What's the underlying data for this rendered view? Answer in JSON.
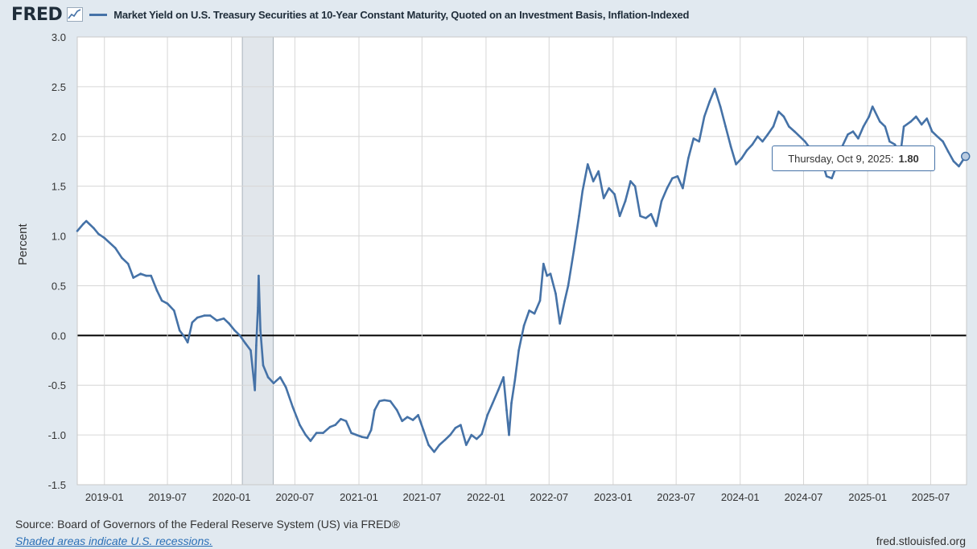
{
  "header": {
    "logo": "FRED",
    "logo_icon": "chart-line-icon",
    "series_title": "Market Yield on U.S. Treasury Securities at 10-Year Constant Maturity, Quoted on an Investment Basis, Inflation-Indexed"
  },
  "footer": {
    "source": "Source: Board of Governors of the Federal Reserve System (US) via FRED®",
    "recession_note": "Shaded areas indicate U.S. recessions.",
    "site": "fred.stlouisfed.org"
  },
  "tooltip": {
    "date_label": "Thursday, Oct 9, 2025:",
    "value": "1.80"
  },
  "colors": {
    "series": "#4572a7",
    "background": "#e1e9f0",
    "plot": "#ffffff",
    "recession": "#e1e6eb"
  },
  "chart_data": {
    "type": "line",
    "title": "",
    "xlabel": "",
    "ylabel": "Percent",
    "ylim": [
      -1.5,
      3.0
    ],
    "yticks": [
      "3.0",
      "2.5",
      "2.0",
      "1.5",
      "1.0",
      "0.5",
      "0.0",
      "-0.5",
      "-1.0",
      "-1.5"
    ],
    "xticks": [
      "2019-01",
      "2019-07",
      "2020-01",
      "2020-07",
      "2021-01",
      "2021-07",
      "2022-01",
      "2022-07",
      "2023-01",
      "2023-07",
      "2024-01",
      "2024-07",
      "2025-01",
      "2025-07"
    ],
    "xlim": [
      "2018-10-15",
      "2025-10-12"
    ],
    "grid": true,
    "recessions": [
      {
        "start": "2020-02-01",
        "end": "2020-04-30"
      }
    ],
    "series": [
      {
        "name": "Market Yield on U.S. Treasury Securities at 10-Year Constant Maturity, Quoted on an Investment Basis, Inflation-Indexed",
        "points": [
          [
            "2018-10-15",
            1.05
          ],
          [
            "2018-11-01",
            1.12
          ],
          [
            "2018-11-10",
            1.15
          ],
          [
            "2018-12-01",
            1.08
          ],
          [
            "2018-12-15",
            1.02
          ],
          [
            "2019-01-01",
            0.98
          ],
          [
            "2019-02-01",
            0.88
          ],
          [
            "2019-02-20",
            0.78
          ],
          [
            "2019-03-10",
            0.72
          ],
          [
            "2019-03-25",
            0.58
          ],
          [
            "2019-04-15",
            0.62
          ],
          [
            "2019-05-01",
            0.6
          ],
          [
            "2019-05-15",
            0.6
          ],
          [
            "2019-06-01",
            0.45
          ],
          [
            "2019-06-15",
            0.35
          ],
          [
            "2019-07-01",
            0.32
          ],
          [
            "2019-07-20",
            0.25
          ],
          [
            "2019-08-05",
            0.05
          ],
          [
            "2019-08-20",
            -0.02
          ],
          [
            "2019-08-28",
            -0.07
          ],
          [
            "2019-09-10",
            0.13
          ],
          [
            "2019-09-25",
            0.18
          ],
          [
            "2019-10-15",
            0.2
          ],
          [
            "2019-11-01",
            0.2
          ],
          [
            "2019-11-20",
            0.15
          ],
          [
            "2019-12-10",
            0.17
          ],
          [
            "2019-12-25",
            0.12
          ],
          [
            "2020-01-10",
            0.05
          ],
          [
            "2020-01-25",
            0.0
          ],
          [
            "2020-02-10",
            -0.08
          ],
          [
            "2020-02-25",
            -0.15
          ],
          [
            "2020-03-08",
            -0.55
          ],
          [
            "2020-03-12",
            -0.1
          ],
          [
            "2020-03-17",
            0.28
          ],
          [
            "2020-03-19",
            0.6
          ],
          [
            "2020-03-24",
            0.05
          ],
          [
            "2020-04-01",
            -0.3
          ],
          [
            "2020-04-15",
            -0.42
          ],
          [
            "2020-05-01",
            -0.48
          ],
          [
            "2020-05-20",
            -0.42
          ],
          [
            "2020-06-05",
            -0.52
          ],
          [
            "2020-06-25",
            -0.72
          ],
          [
            "2020-07-15",
            -0.9
          ],
          [
            "2020-08-01",
            -1.0
          ],
          [
            "2020-08-15",
            -1.06
          ],
          [
            "2020-09-01",
            -0.98
          ],
          [
            "2020-09-20",
            -0.98
          ],
          [
            "2020-10-10",
            -0.92
          ],
          [
            "2020-10-25",
            -0.9
          ],
          [
            "2020-11-10",
            -0.84
          ],
          [
            "2020-11-25",
            -0.86
          ],
          [
            "2020-12-10",
            -0.98
          ],
          [
            "2020-12-25",
            -1.0
          ],
          [
            "2021-01-10",
            -1.02
          ],
          [
            "2021-01-25",
            -1.03
          ],
          [
            "2021-02-05",
            -0.95
          ],
          [
            "2021-02-15",
            -0.75
          ],
          [
            "2021-03-01",
            -0.66
          ],
          [
            "2021-03-15",
            -0.65
          ],
          [
            "2021-04-01",
            -0.66
          ],
          [
            "2021-04-20",
            -0.75
          ],
          [
            "2021-05-05",
            -0.86
          ],
          [
            "2021-05-20",
            -0.82
          ],
          [
            "2021-06-05",
            -0.85
          ],
          [
            "2021-06-20",
            -0.8
          ],
          [
            "2021-07-05",
            -0.95
          ],
          [
            "2021-07-20",
            -1.1
          ],
          [
            "2021-08-05",
            -1.17
          ],
          [
            "2021-08-20",
            -1.1
          ],
          [
            "2021-09-05",
            -1.05
          ],
          [
            "2021-09-20",
            -1.0
          ],
          [
            "2021-10-05",
            -0.93
          ],
          [
            "2021-10-20",
            -0.9
          ],
          [
            "2021-11-05",
            -1.1
          ],
          [
            "2021-11-20",
            -1.0
          ],
          [
            "2021-12-05",
            -1.04
          ],
          [
            "2021-12-20",
            -0.99
          ],
          [
            "2022-01-05",
            -0.8
          ],
          [
            "2022-01-20",
            -0.68
          ],
          [
            "2022-02-05",
            -0.55
          ],
          [
            "2022-02-20",
            -0.42
          ],
          [
            "2022-03-01",
            -0.75
          ],
          [
            "2022-03-08",
            -1.0
          ],
          [
            "2022-03-15",
            -0.68
          ],
          [
            "2022-03-25",
            -0.45
          ],
          [
            "2022-04-05",
            -0.15
          ],
          [
            "2022-04-20",
            0.1
          ],
          [
            "2022-05-05",
            0.25
          ],
          [
            "2022-05-20",
            0.22
          ],
          [
            "2022-06-05",
            0.35
          ],
          [
            "2022-06-15",
            0.72
          ],
          [
            "2022-06-25",
            0.6
          ],
          [
            "2022-07-05",
            0.62
          ],
          [
            "2022-07-20",
            0.42
          ],
          [
            "2022-08-01",
            0.12
          ],
          [
            "2022-08-15",
            0.35
          ],
          [
            "2022-08-25",
            0.5
          ],
          [
            "2022-09-10",
            0.85
          ],
          [
            "2022-09-25",
            1.2
          ],
          [
            "2022-10-05",
            1.45
          ],
          [
            "2022-10-20",
            1.72
          ],
          [
            "2022-11-05",
            1.55
          ],
          [
            "2022-11-20",
            1.65
          ],
          [
            "2022-12-05",
            1.38
          ],
          [
            "2022-12-20",
            1.48
          ],
          [
            "2023-01-05",
            1.42
          ],
          [
            "2023-01-20",
            1.2
          ],
          [
            "2023-02-05",
            1.35
          ],
          [
            "2023-02-20",
            1.55
          ],
          [
            "2023-03-05",
            1.5
          ],
          [
            "2023-03-20",
            1.2
          ],
          [
            "2023-04-05",
            1.18
          ],
          [
            "2023-04-20",
            1.22
          ],
          [
            "2023-05-05",
            1.1
          ],
          [
            "2023-05-20",
            1.35
          ],
          [
            "2023-06-05",
            1.48
          ],
          [
            "2023-06-20",
            1.58
          ],
          [
            "2023-07-05",
            1.6
          ],
          [
            "2023-07-20",
            1.48
          ],
          [
            "2023-08-05",
            1.78
          ],
          [
            "2023-08-20",
            1.98
          ],
          [
            "2023-09-05",
            1.95
          ],
          [
            "2023-09-20",
            2.2
          ],
          [
            "2023-10-05",
            2.35
          ],
          [
            "2023-10-20",
            2.48
          ],
          [
            "2023-11-05",
            2.3
          ],
          [
            "2023-11-20",
            2.1
          ],
          [
            "2023-12-05",
            1.9
          ],
          [
            "2023-12-20",
            1.72
          ],
          [
            "2024-01-05",
            1.78
          ],
          [
            "2024-01-20",
            1.86
          ],
          [
            "2024-02-05",
            1.92
          ],
          [
            "2024-02-20",
            2.0
          ],
          [
            "2024-03-05",
            1.95
          ],
          [
            "2024-03-20",
            2.02
          ],
          [
            "2024-04-05",
            2.1
          ],
          [
            "2024-04-20",
            2.25
          ],
          [
            "2024-05-05",
            2.2
          ],
          [
            "2024-05-20",
            2.1
          ],
          [
            "2024-06-05",
            2.05
          ],
          [
            "2024-06-20",
            2.0
          ],
          [
            "2024-07-05",
            1.95
          ],
          [
            "2024-07-20",
            1.88
          ],
          [
            "2024-08-05",
            1.75
          ],
          [
            "2024-08-20",
            1.78
          ],
          [
            "2024-09-05",
            1.6
          ],
          [
            "2024-09-20",
            1.58
          ],
          [
            "2024-10-05",
            1.72
          ],
          [
            "2024-10-20",
            1.9
          ],
          [
            "2024-11-05",
            2.02
          ],
          [
            "2024-11-20",
            2.05
          ],
          [
            "2024-12-05",
            1.98
          ],
          [
            "2024-12-20",
            2.1
          ],
          [
            "2025-01-05",
            2.2
          ],
          [
            "2025-01-15",
            2.3
          ],
          [
            "2025-02-05",
            2.15
          ],
          [
            "2025-02-20",
            2.1
          ],
          [
            "2025-03-05",
            1.95
          ],
          [
            "2025-03-20",
            1.92
          ],
          [
            "2025-04-05",
            1.82
          ],
          [
            "2025-04-15",
            2.1
          ],
          [
            "2025-05-05",
            2.15
          ],
          [
            "2025-05-20",
            2.2
          ],
          [
            "2025-06-05",
            2.12
          ],
          [
            "2025-06-20",
            2.18
          ],
          [
            "2025-07-05",
            2.05
          ],
          [
            "2025-07-20",
            2.0
          ],
          [
            "2025-08-05",
            1.95
          ],
          [
            "2025-08-20",
            1.85
          ],
          [
            "2025-09-05",
            1.75
          ],
          [
            "2025-09-20",
            1.7
          ],
          [
            "2025-10-09",
            1.8
          ]
        ]
      }
    ]
  }
}
